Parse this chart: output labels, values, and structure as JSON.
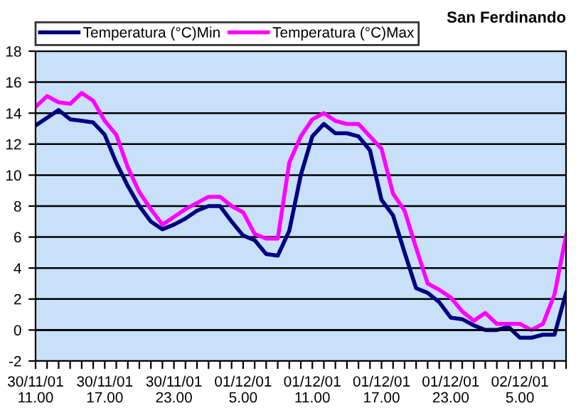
{
  "chart_data": {
    "type": "line",
    "title": "San Ferdinando",
    "categories": [
      "30/11/01\n11.00",
      null,
      null,
      null,
      null,
      null,
      "30/11/01\n17.00",
      null,
      null,
      null,
      null,
      null,
      "30/11/01\n23.00",
      null,
      null,
      null,
      null,
      null,
      "01/12/01\n5.00",
      null,
      null,
      null,
      null,
      null,
      "01/12/01\n11.00",
      null,
      null,
      null,
      null,
      null,
      "01/12/01\n17.00",
      null,
      null,
      null,
      null,
      null,
      "01/12/01\n23.00",
      null,
      null,
      null,
      null,
      null,
      "02/12/01\n5.00",
      null,
      null,
      null,
      null
    ],
    "series": [
      {
        "name": "Temperatura (°C)Min",
        "color": "#000080",
        "values": [
          13.2,
          13.7,
          14.2,
          13.6,
          13.5,
          13.4,
          12.6,
          10.8,
          9.3,
          8.0,
          7.0,
          6.5,
          6.8,
          7.2,
          7.7,
          8.0,
          8.0,
          7.0,
          6.1,
          5.8,
          4.9,
          4.8,
          6.4,
          10.0,
          12.5,
          13.3,
          12.7,
          12.7,
          12.5,
          11.6,
          8.4,
          7.4,
          5.0,
          2.7,
          2.4,
          1.8,
          0.8,
          0.7,
          0.3,
          0.0,
          0.0,
          0.2,
          -0.5,
          -0.5,
          -0.3,
          -0.3,
          2.4
        ]
      },
      {
        "name": "Temperatura (°C)Max",
        "color": "#ff00ff",
        "values": [
          14.4,
          15.1,
          14.7,
          14.6,
          15.3,
          14.8,
          13.5,
          12.6,
          10.5,
          8.9,
          7.8,
          6.8,
          7.3,
          7.8,
          8.2,
          8.6,
          8.6,
          8.0,
          7.6,
          6.2,
          5.9,
          5.9,
          10.8,
          12.5,
          13.6,
          14.0,
          13.5,
          13.3,
          13.3,
          12.5,
          11.7,
          8.8,
          7.7,
          5.3,
          3.0,
          2.6,
          2.1,
          1.2,
          0.6,
          1.1,
          0.4,
          0.4,
          0.4,
          0.0,
          0.4,
          2.3,
          6.1
        ]
      }
    ],
    "ylim": [
      -2,
      18
    ],
    "yticks": [
      -2,
      0,
      2,
      4,
      6,
      8,
      10,
      12,
      14,
      16,
      18
    ],
    "grid": "y",
    "legend": "top",
    "marker": "none",
    "line_style": "solid"
  }
}
